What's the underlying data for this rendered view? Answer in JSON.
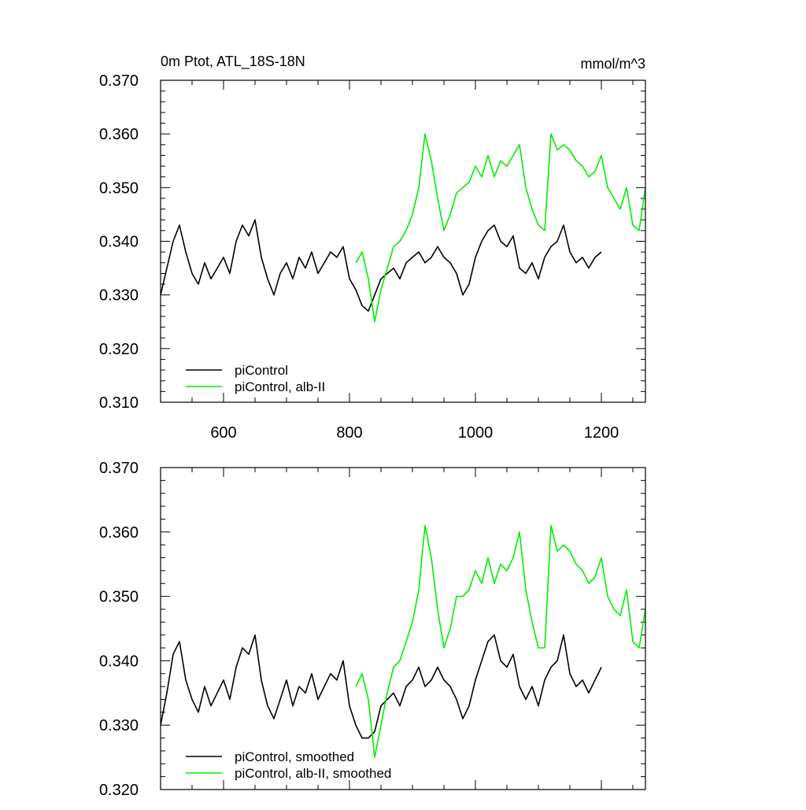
{
  "colors": {
    "piControl": "#000000",
    "alb_II": "#00ee00",
    "axis": "#000000",
    "background": "#ffffff"
  },
  "chart_data": [
    {
      "type": "line",
      "title": "0m Ptot, ATL_18S-18N",
      "units": "mmol/m^3",
      "xlim": [
        500,
        1270
      ],
      "ylim": [
        0.31,
        0.37
      ],
      "xticks": [
        600,
        800,
        1000,
        1200
      ],
      "xtick_labels": [
        "600",
        "800",
        "1000",
        "1200"
      ],
      "yticks": [
        0.31,
        0.32,
        0.33,
        0.34,
        0.35,
        0.36,
        0.37
      ],
      "ytick_labels": [
        "0.310",
        "0.320",
        "0.330",
        "0.340",
        "0.350",
        "0.360",
        "0.370"
      ],
      "grid": false,
      "legend_position": "bottom-left",
      "series": [
        {
          "name": "piControl",
          "color": "#000000",
          "x": [
            500,
            510,
            520,
            530,
            540,
            550,
            560,
            570,
            580,
            590,
            600,
            610,
            620,
            630,
            640,
            650,
            660,
            670,
            680,
            690,
            700,
            710,
            720,
            730,
            740,
            750,
            760,
            770,
            780,
            790,
            800,
            810,
            820,
            830,
            840,
            850,
            860,
            870,
            880,
            890,
            900,
            910,
            920,
            930,
            940,
            950,
            960,
            970,
            980,
            990,
            1000,
            1010,
            1020,
            1030,
            1040,
            1050,
            1060,
            1070,
            1080,
            1090,
            1100,
            1110,
            1120,
            1130,
            1140,
            1150,
            1160,
            1170,
            1180,
            1190,
            1200
          ],
          "y": [
            0.33,
            0.335,
            0.34,
            0.343,
            0.338,
            0.334,
            0.332,
            0.336,
            0.333,
            0.335,
            0.337,
            0.334,
            0.34,
            0.343,
            0.341,
            0.344,
            0.337,
            0.333,
            0.33,
            0.334,
            0.336,
            0.333,
            0.337,
            0.335,
            0.338,
            0.334,
            0.336,
            0.338,
            0.337,
            0.339,
            0.333,
            0.331,
            0.328,
            0.327,
            0.33,
            0.333,
            0.334,
            0.335,
            0.333,
            0.336,
            0.337,
            0.338,
            0.336,
            0.337,
            0.339,
            0.337,
            0.336,
            0.334,
            0.33,
            0.332,
            0.337,
            0.34,
            0.342,
            0.343,
            0.34,
            0.339,
            0.341,
            0.335,
            0.334,
            0.336,
            0.333,
            0.337,
            0.339,
            0.34,
            0.343,
            0.338,
            0.336,
            0.337,
            0.335,
            0.337,
            0.338
          ]
        },
        {
          "name": "piControl, alb-II",
          "color": "#00ee00",
          "x": [
            810,
            820,
            830,
            840,
            850,
            860,
            870,
            880,
            890,
            900,
            910,
            920,
            930,
            940,
            950,
            960,
            970,
            980,
            990,
            1000,
            1010,
            1020,
            1030,
            1040,
            1050,
            1060,
            1070,
            1080,
            1090,
            1100,
            1110,
            1120,
            1130,
            1140,
            1150,
            1160,
            1170,
            1180,
            1190,
            1200,
            1210,
            1220,
            1230,
            1240,
            1250,
            1260,
            1270
          ],
          "y": [
            0.336,
            0.338,
            0.333,
            0.325,
            0.331,
            0.335,
            0.339,
            0.34,
            0.342,
            0.345,
            0.35,
            0.36,
            0.355,
            0.348,
            0.342,
            0.345,
            0.349,
            0.35,
            0.351,
            0.354,
            0.352,
            0.356,
            0.352,
            0.355,
            0.354,
            0.356,
            0.358,
            0.35,
            0.346,
            0.343,
            0.342,
            0.36,
            0.357,
            0.358,
            0.357,
            0.355,
            0.354,
            0.352,
            0.353,
            0.356,
            0.35,
            0.348,
            0.346,
            0.35,
            0.343,
            0.342,
            0.35
          ]
        }
      ]
    },
    {
      "type": "line",
      "xlim": [
        500,
        1270
      ],
      "ylim": [
        0.32,
        0.37
      ],
      "xticks": [
        600,
        800,
        1000,
        1200
      ],
      "yticks": [
        0.32,
        0.33,
        0.34,
        0.35,
        0.36,
        0.37
      ],
      "ytick_labels": [
        "0.320",
        "0.330",
        "0.340",
        "0.350",
        "0.360",
        "0.370"
      ],
      "grid": false,
      "legend_position": "bottom-left",
      "series": [
        {
          "name": "piControl, smoothed",
          "color": "#000000",
          "x": [
            500,
            510,
            520,
            530,
            540,
            550,
            560,
            570,
            580,
            590,
            600,
            610,
            620,
            630,
            640,
            650,
            660,
            670,
            680,
            690,
            700,
            710,
            720,
            730,
            740,
            750,
            760,
            770,
            780,
            790,
            800,
            810,
            820,
            830,
            840,
            850,
            860,
            870,
            880,
            890,
            900,
            910,
            920,
            930,
            940,
            950,
            960,
            970,
            980,
            990,
            1000,
            1010,
            1020,
            1030,
            1040,
            1050,
            1060,
            1070,
            1080,
            1090,
            1100,
            1110,
            1120,
            1130,
            1140,
            1150,
            1160,
            1170,
            1180,
            1190,
            1200
          ],
          "y": [
            0.33,
            0.335,
            0.341,
            0.343,
            0.337,
            0.334,
            0.332,
            0.336,
            0.333,
            0.335,
            0.337,
            0.334,
            0.339,
            0.342,
            0.341,
            0.344,
            0.337,
            0.333,
            0.331,
            0.334,
            0.337,
            0.333,
            0.336,
            0.335,
            0.338,
            0.334,
            0.336,
            0.338,
            0.337,
            0.34,
            0.333,
            0.33,
            0.328,
            0.328,
            0.329,
            0.333,
            0.334,
            0.335,
            0.333,
            0.336,
            0.337,
            0.339,
            0.336,
            0.337,
            0.339,
            0.337,
            0.336,
            0.334,
            0.331,
            0.333,
            0.337,
            0.34,
            0.343,
            0.344,
            0.34,
            0.339,
            0.341,
            0.336,
            0.334,
            0.336,
            0.333,
            0.337,
            0.339,
            0.34,
            0.344,
            0.338,
            0.336,
            0.337,
            0.335,
            0.337,
            0.339
          ]
        },
        {
          "name": "piControl, alb-II, smoothed",
          "color": "#00ee00",
          "x": [
            810,
            820,
            830,
            840,
            850,
            860,
            870,
            880,
            890,
            900,
            910,
            920,
            930,
            940,
            950,
            960,
            970,
            980,
            990,
            1000,
            1010,
            1020,
            1030,
            1040,
            1050,
            1060,
            1070,
            1080,
            1090,
            1100,
            1110,
            1120,
            1130,
            1140,
            1150,
            1160,
            1170,
            1180,
            1190,
            1200,
            1210,
            1220,
            1230,
            1240,
            1250,
            1260,
            1270
          ],
          "y": [
            0.336,
            0.338,
            0.334,
            0.325,
            0.33,
            0.335,
            0.339,
            0.34,
            0.343,
            0.346,
            0.351,
            0.361,
            0.356,
            0.348,
            0.342,
            0.345,
            0.35,
            0.35,
            0.351,
            0.354,
            0.352,
            0.356,
            0.352,
            0.355,
            0.354,
            0.356,
            0.36,
            0.351,
            0.346,
            0.342,
            0.342,
            0.361,
            0.357,
            0.358,
            0.357,
            0.355,
            0.354,
            0.352,
            0.353,
            0.356,
            0.35,
            0.348,
            0.347,
            0.351,
            0.343,
            0.342,
            0.348
          ]
        }
      ]
    }
  ]
}
